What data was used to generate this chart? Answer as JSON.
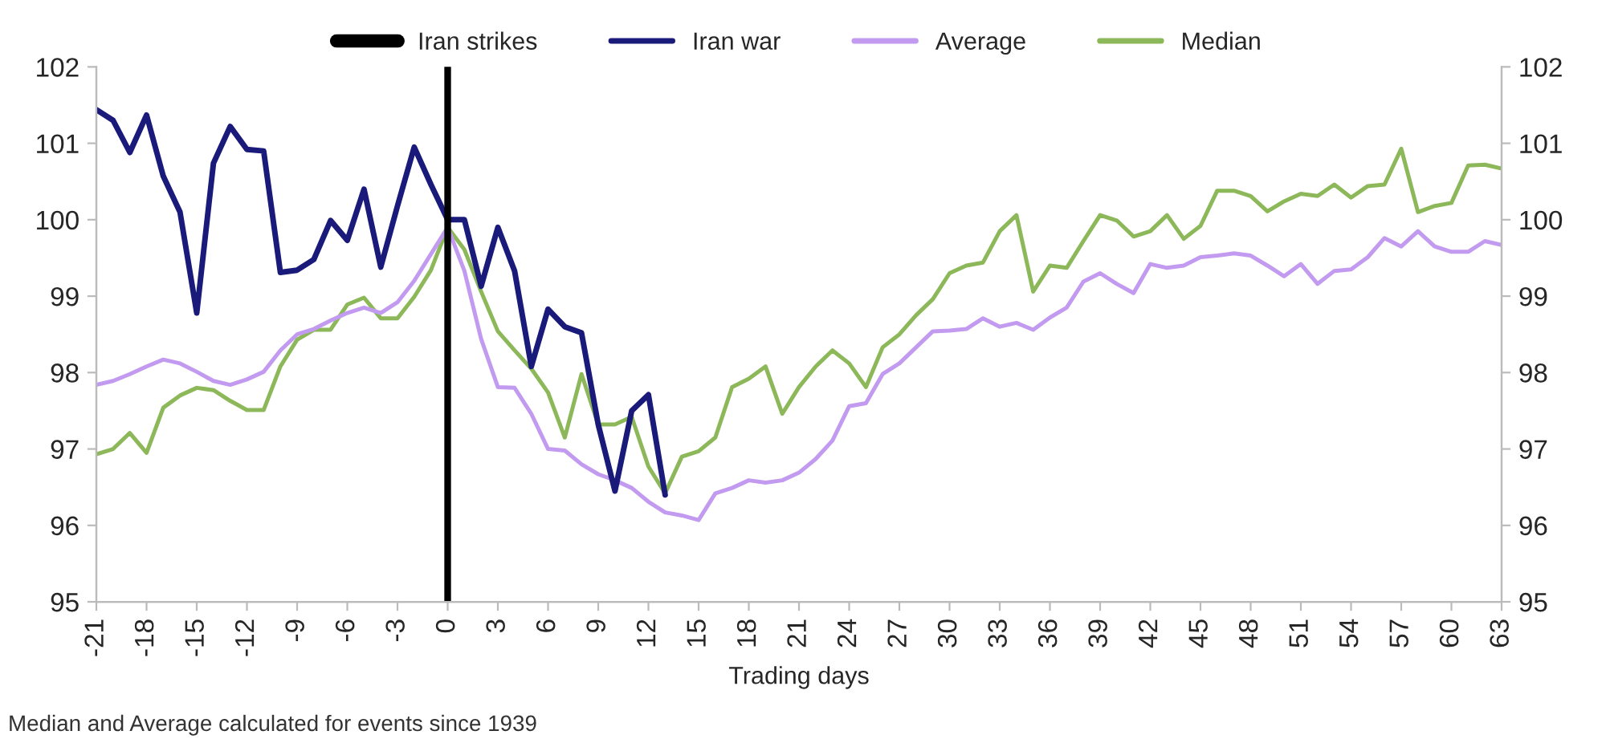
{
  "chart_data": {
    "type": "line",
    "xlabel": "Trading days",
    "annotations": [
      "Median and Average calculated for events since 1939"
    ],
    "xlim": [
      -21,
      63
    ],
    "xticks": [
      -21,
      -18,
      -15,
      -12,
      -9,
      -6,
      -3,
      0,
      3,
      6,
      9,
      12,
      15,
      18,
      21,
      24,
      27,
      30,
      33,
      36,
      39,
      42,
      45,
      48,
      51,
      54,
      57,
      60,
      63
    ],
    "ylim": [
      95,
      102
    ],
    "yticks": [
      95,
      96,
      97,
      98,
      99,
      100,
      101,
      102
    ],
    "y2lim": [
      95,
      102
    ],
    "y2ticks": [
      95,
      96,
      97,
      98,
      99,
      100,
      101,
      102
    ],
    "grid": false,
    "legend": "top",
    "line_style": "solid",
    "marker": "none",
    "ref_lines": [
      {
        "axis": "x",
        "value": 0,
        "label": "Iran strikes",
        "color": "#000000"
      }
    ],
    "series": [
      {
        "name": "Iran war",
        "color": "#1a1a7a",
        "x": [
          -21,
          -20,
          -19,
          -18,
          -17,
          -16,
          -15,
          -14,
          -13,
          -12,
          -11,
          -10,
          -9,
          -8,
          -7,
          -6,
          -5,
          -4,
          -3,
          -2,
          -1,
          0,
          1,
          2,
          3,
          4,
          5,
          6,
          7,
          8,
          9,
          10,
          11,
          12,
          13
        ],
        "values": [
          101.44,
          101.3,
          100.88,
          101.37,
          100.57,
          100.1,
          98.78,
          100.74,
          101.22,
          100.92,
          100.9,
          99.31,
          99.34,
          99.48,
          99.99,
          99.73,
          100.4,
          99.38,
          100.18,
          100.95,
          100.46,
          100.0,
          100.0,
          99.13,
          99.9,
          99.33,
          98.08,
          98.83,
          98.6,
          98.52,
          97.32,
          96.45,
          97.5,
          97.71,
          96.4
        ]
      },
      {
        "name": "Average",
        "color": "#c29bf0",
        "x": [
          -21,
          -20,
          -19,
          -18,
          -17,
          -16,
          -15,
          -14,
          -13,
          -12,
          -11,
          -10,
          -9,
          -8,
          -7,
          -6,
          -5,
          -4,
          -3,
          -2,
          -1,
          0,
          1,
          2,
          3,
          4,
          5,
          6,
          7,
          8,
          9,
          10,
          11,
          12,
          13,
          14,
          15,
          16,
          17,
          18,
          19,
          20,
          21,
          22,
          23,
          24,
          25,
          26,
          27,
          28,
          29,
          30,
          31,
          32,
          33,
          34,
          35,
          36,
          37,
          38,
          39,
          40,
          41,
          42,
          43,
          44,
          45,
          46,
          47,
          48,
          49,
          50,
          51,
          52,
          53,
          54,
          55,
          56,
          57,
          58,
          59,
          60,
          61,
          62,
          63
        ],
        "values": [
          97.84,
          97.89,
          97.98,
          98.08,
          98.17,
          98.12,
          98.01,
          97.89,
          97.84,
          97.91,
          98.01,
          98.29,
          98.5,
          98.57,
          98.68,
          98.78,
          98.85,
          98.78,
          98.92,
          99.2,
          99.55,
          99.9,
          99.33,
          98.44,
          97.81,
          97.8,
          97.46,
          97.0,
          96.98,
          96.8,
          96.67,
          96.59,
          96.49,
          96.31,
          96.17,
          96.13,
          96.07,
          96.42,
          96.49,
          96.59,
          96.56,
          96.59,
          96.69,
          96.87,
          97.11,
          97.56,
          97.6,
          97.98,
          98.12,
          98.33,
          98.54,
          98.55,
          98.57,
          98.71,
          98.6,
          98.65,
          98.56,
          98.72,
          98.85,
          99.19,
          99.3,
          99.16,
          99.04,
          99.42,
          99.37,
          99.4,
          99.51,
          99.53,
          99.56,
          99.53,
          99.4,
          99.26,
          99.42,
          99.16,
          99.33,
          99.35,
          99.51,
          99.76,
          99.65,
          99.85,
          99.65,
          99.58,
          99.58,
          99.72,
          99.67
        ]
      },
      {
        "name": "Median",
        "color": "#8db85a",
        "x": [
          -21,
          -20,
          -19,
          -18,
          -17,
          -16,
          -15,
          -14,
          -13,
          -12,
          -11,
          -10,
          -9,
          -8,
          -7,
          -6,
          -5,
          -4,
          -3,
          -2,
          -1,
          0,
          1,
          2,
          3,
          4,
          5,
          6,
          7,
          8,
          9,
          10,
          11,
          12,
          13,
          14,
          15,
          16,
          17,
          18,
          19,
          20,
          21,
          22,
          23,
          24,
          25,
          26,
          27,
          28,
          29,
          30,
          31,
          32,
          33,
          34,
          35,
          36,
          37,
          38,
          39,
          40,
          41,
          42,
          43,
          44,
          45,
          46,
          47,
          48,
          49,
          50,
          51,
          52,
          53,
          54,
          55,
          56,
          57,
          58,
          59,
          60,
          61,
          62,
          63
        ],
        "values": [
          96.93,
          97.0,
          97.21,
          96.95,
          97.54,
          97.7,
          97.8,
          97.77,
          97.63,
          97.51,
          97.51,
          98.08,
          98.43,
          98.56,
          98.56,
          98.89,
          98.98,
          98.71,
          98.71,
          98.99,
          99.34,
          99.9,
          99.61,
          99.06,
          98.54,
          98.29,
          98.05,
          97.74,
          97.15,
          97.98,
          97.32,
          97.32,
          97.42,
          96.77,
          96.42,
          96.9,
          96.97,
          97.15,
          97.81,
          97.92,
          98.08,
          97.46,
          97.81,
          98.08,
          98.29,
          98.12,
          97.81,
          98.33,
          98.5,
          98.75,
          98.96,
          99.3,
          99.4,
          99.44,
          99.85,
          100.06,
          99.06,
          99.4,
          99.37,
          99.72,
          100.06,
          99.99,
          99.78,
          99.85,
          100.06,
          99.75,
          99.92,
          100.38,
          100.38,
          100.31,
          100.11,
          100.24,
          100.34,
          100.31,
          100.46,
          100.29,
          100.44,
          100.46,
          100.93,
          100.1,
          100.18,
          100.22,
          100.71,
          100.72,
          100.67
        ]
      }
    ]
  }
}
